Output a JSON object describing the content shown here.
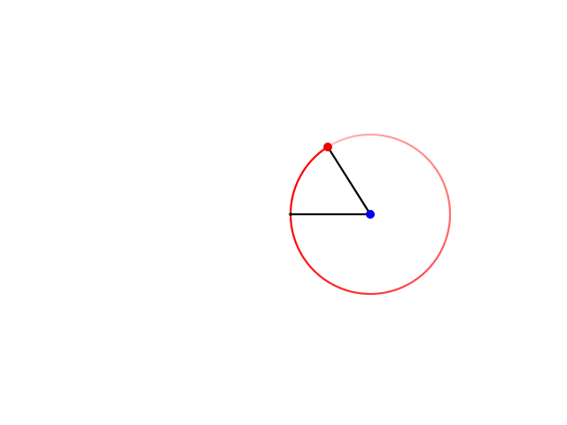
{
  "colors": {
    "background": "#ffffff",
    "trail_start": "#ff0000",
    "trail_end": "#ffbcbc",
    "radius_line": "#000000",
    "moving_point": "#ee0000",
    "center_point": "#0000ee",
    "start_marker": "#000000"
  }
}
